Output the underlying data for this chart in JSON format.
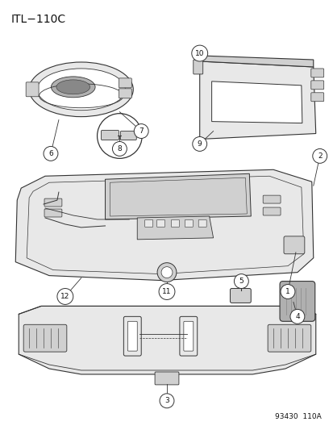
{
  "title": "ITL−110C",
  "figure_code": "93430  110A",
  "bg_color": "#ffffff",
  "line_color": "#333333",
  "label_color": "#111111",
  "title_fontsize": 10,
  "label_fontsize": 7
}
